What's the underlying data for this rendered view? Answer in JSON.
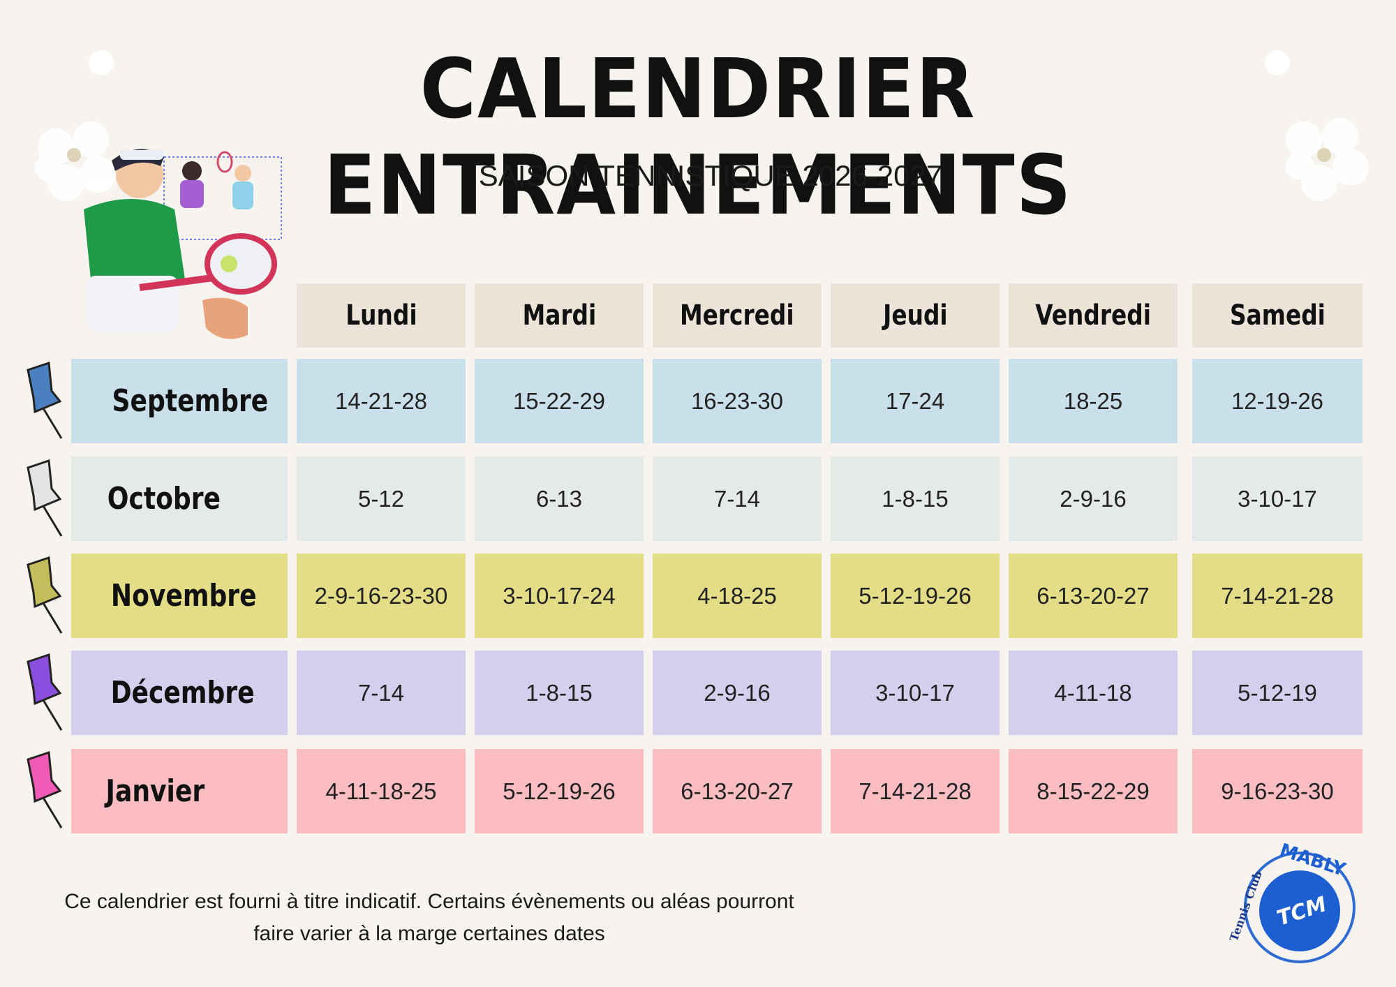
{
  "header": {
    "title": "CALENDRIER ENTRAINEMENTS",
    "subtitle": "SAISON TENNISTIQUE 2026-2027"
  },
  "table": {
    "columns": [
      "Lundi",
      "Mardi",
      "Mercredi",
      "Jeudi",
      "Vendredi",
      "Samedi"
    ],
    "rows": [
      {
        "month": "Septembre",
        "dates": [
          "14-21-28",
          "15-22-29",
          "16-23-30",
          "17-24",
          "18-25",
          "12-19-26"
        ]
      },
      {
        "month": "Octobre",
        "dates": [
          "5-12",
          "6-13",
          "7-14",
          "1-8-15",
          "2-9-16",
          "3-10-17"
        ]
      },
      {
        "month": "Novembre",
        "dates": [
          "2-9-16-23-30",
          "3-10-17-24",
          "4-18-25",
          "5-12-19-26",
          "6-13-20-27",
          "7-14-21-28"
        ]
      },
      {
        "month": "Décembre",
        "dates": [
          "7-14",
          "1-8-15",
          "2-9-16",
          "3-10-17",
          "4-11-18",
          "5-12-19"
        ]
      },
      {
        "month": "Janvier",
        "dates": [
          "4-11-18-25",
          "5-12-19-26",
          "6-13-20-27",
          "7-14-21-28",
          "8-15-22-29",
          "9-16-23-30"
        ]
      }
    ]
  },
  "footer": {
    "note_lines": [
      "Ce calendrier est fourni à titre indicatif. Certains évènements ou aléas pourront",
      "faire varier à la marge certaines dates"
    ]
  },
  "logo": {
    "name": "Tennis Club",
    "city": "MABLY",
    "initials": "TCM"
  }
}
